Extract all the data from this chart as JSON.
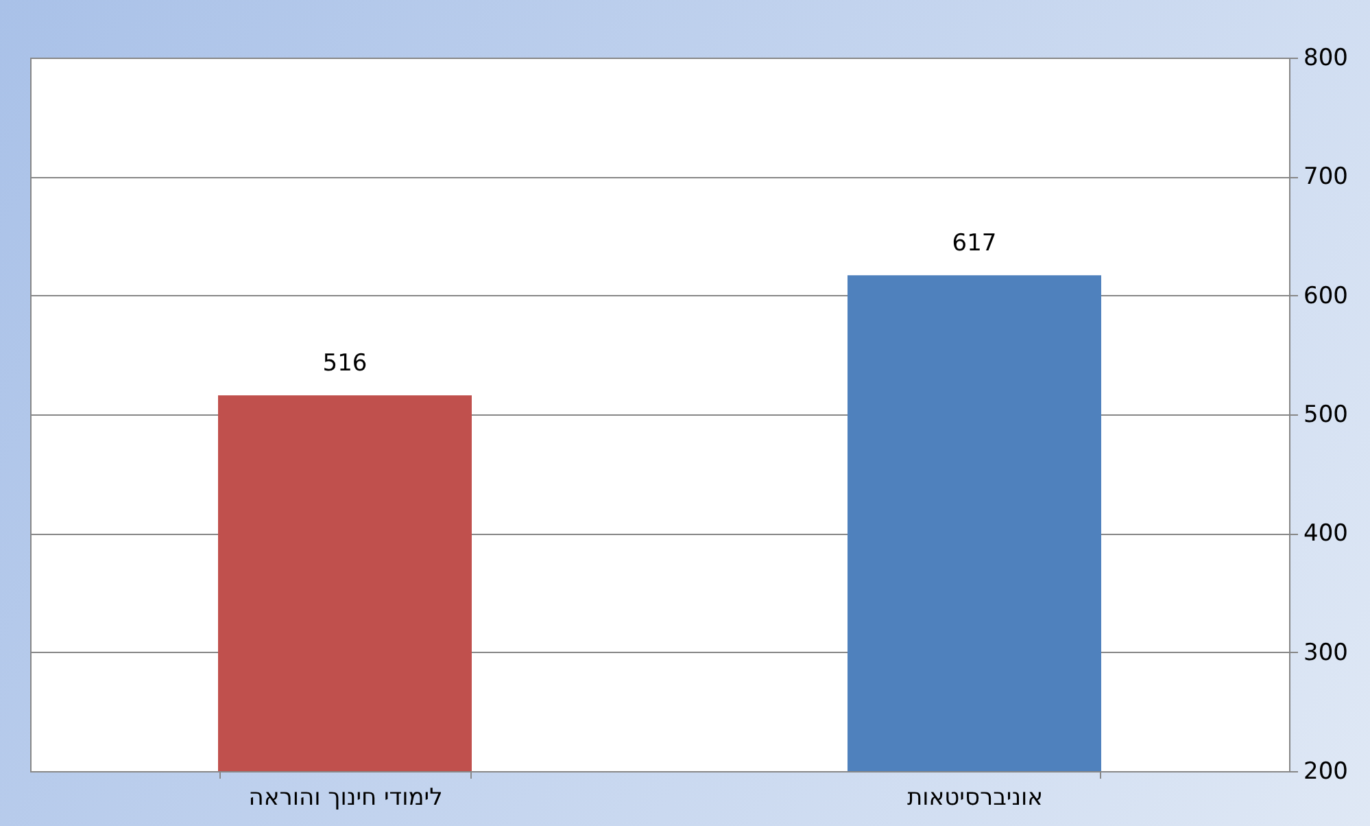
{
  "chart_data": {
    "type": "bar",
    "categories": [
      "לימודי חינוך והוראה",
      "אוניברסיטאות"
    ],
    "values": [
      516,
      617
    ],
    "colors": [
      "#c0504d",
      "#4f81bd"
    ],
    "ylim": [
      200,
      800
    ],
    "yticks": [
      200,
      300,
      400,
      500,
      600,
      700,
      800
    ],
    "grid": "y",
    "data_labels": true
  }
}
